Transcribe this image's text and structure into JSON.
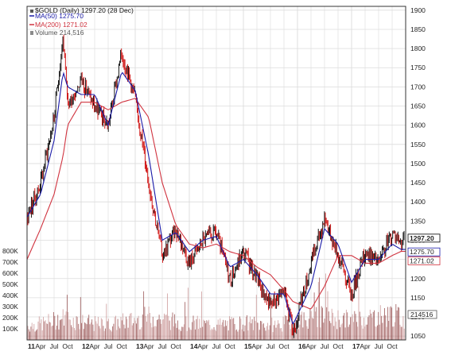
{
  "chart_data": {
    "type": "line",
    "legend": {
      "title": "$GOLD (Daily) 1297.20 (28 Dec)",
      "ma50": "MA(50) 1275.70",
      "ma200": "MA(200) 1271.02",
      "volume": "Volume 214,516"
    },
    "colors": {
      "price": "#000000",
      "price_up": "#000000",
      "price_down": "#cc0000",
      "ma50": "#1a1aa8",
      "ma200": "#d0333f",
      "volume": "#c48a8a",
      "volume_dark": "#8b3b3b",
      "grid": "#dcdcdc",
      "frame": "#333333"
    },
    "price_axis": {
      "min": 1040,
      "max": 1910,
      "ticks": [
        "1900",
        "1850",
        "1800",
        "1750",
        "1700",
        "1650",
        "1600",
        "1550",
        "1500",
        "1450",
        "1400",
        "1350",
        "1300",
        "1250",
        "1200",
        "1150",
        "1100",
        "1050"
      ],
      "tick_values": [
        1900,
        1850,
        1800,
        1750,
        1700,
        1650,
        1600,
        1550,
        1500,
        1450,
        1400,
        1350,
        1300,
        1250,
        1200,
        1150,
        1100,
        1050
      ]
    },
    "volume_axis": {
      "max": 900000,
      "ticks": [
        "800K",
        "700K",
        "600K",
        "500K",
        "400K",
        "300K",
        "200K",
        "100K"
      ],
      "tick_values": [
        800000,
        700000,
        600000,
        500000,
        400000,
        300000,
        200000,
        100000
      ]
    },
    "x_axis": {
      "labels": [
        "11",
        "Apr",
        "Jul",
        "Oct",
        "12",
        "Apr",
        "Jul",
        "Oct",
        "13",
        "Apr",
        "Jul",
        "Oct",
        "14",
        "Apr",
        "Jul",
        "Oct",
        "15",
        "Apr",
        "Jul",
        "Oct",
        "16",
        "Apr",
        "Jul",
        "Oct",
        "17",
        "Apr",
        "Jul",
        "Oct"
      ],
      "year_labels": [
        "11",
        "12",
        "13",
        "14",
        "15",
        "16",
        "17"
      ],
      "range": [
        "2011-01",
        "2017-12"
      ]
    },
    "price_tags": [
      {
        "text": "1297.20",
        "value": 1297.2,
        "style": "last"
      },
      {
        "text": "1275.70",
        "value": 1275.7,
        "style": "ma50"
      },
      {
        "text": "1271.02",
        "value": 1271.02,
        "style": "ma200"
      }
    ],
    "volume_tag": {
      "text": "214516",
      "value": 214516
    },
    "x": [
      "2011-01",
      "2011-04",
      "2011-07",
      "2011-09",
      "2011-10",
      "2012-01",
      "2012-04",
      "2012-07",
      "2012-10",
      "2013-01",
      "2013-04",
      "2013-07",
      "2013-10",
      "2014-01",
      "2014-04",
      "2014-07",
      "2014-10",
      "2015-01",
      "2015-04",
      "2015-07",
      "2015-10",
      "2015-12",
      "2016-04",
      "2016-07",
      "2016-10",
      "2017-01",
      "2017-04",
      "2017-07",
      "2017-10",
      "2017-12"
    ],
    "series": [
      {
        "key": "price",
        "values": [
          1360,
          1450,
          1620,
          1830,
          1650,
          1720,
          1650,
          1600,
          1790,
          1670,
          1450,
          1260,
          1330,
          1240,
          1300,
          1320,
          1200,
          1270,
          1200,
          1130,
          1170,
          1060,
          1240,
          1360,
          1260,
          1160,
          1270,
          1240,
          1320,
          1297
        ]
      },
      {
        "key": "ma50",
        "name": "MA(50)",
        "values": [
          1360,
          1420,
          1560,
          1740,
          1700,
          1680,
          1680,
          1600,
          1740,
          1690,
          1520,
          1300,
          1320,
          1270,
          1300,
          1310,
          1230,
          1250,
          1210,
          1160,
          1160,
          1080,
          1180,
          1330,
          1290,
          1190,
          1250,
          1250,
          1290,
          1276
        ]
      },
      {
        "key": "ma200",
        "name": "MA(200)",
        "values": [
          1250,
          1330,
          1420,
          1520,
          1600,
          1660,
          1660,
          1640,
          1660,
          1670,
          1620,
          1450,
          1340,
          1290,
          1280,
          1290,
          1270,
          1260,
          1230,
          1210,
          1170,
          1140,
          1120,
          1180,
          1260,
          1260,
          1240,
          1240,
          1260,
          1271
        ]
      },
      {
        "key": "volume",
        "values": [
          140000,
          160000,
          190000,
          220000,
          210000,
          180000,
          160000,
          150000,
          180000,
          200000,
          230000,
          210000,
          180000,
          170000,
          160000,
          150000,
          160000,
          170000,
          160000,
          150000,
          160000,
          190000,
          220000,
          230000,
          210000,
          200000,
          220000,
          240000,
          260000,
          214516
        ]
      }
    ]
  }
}
